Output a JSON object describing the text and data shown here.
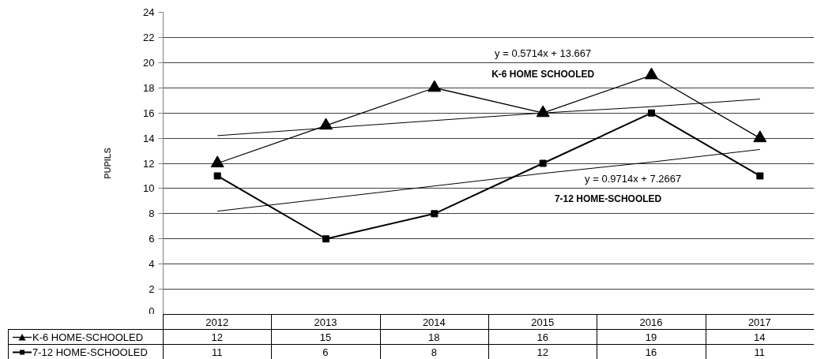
{
  "chart_data": {
    "type": "line",
    "categories": [
      "2012",
      "2013",
      "2014",
      "2015",
      "2016",
      "2017"
    ],
    "series": [
      {
        "name": "K-6 HOME-SCHOOLED",
        "color": "#000000",
        "marker": "triangle",
        "values": [
          12,
          15,
          18,
          16,
          19,
          14
        ],
        "value_labels": [
          "12",
          "15",
          "18",
          "16",
          "19",
          "14"
        ]
      },
      {
        "name": "7-12 HOME-SCHOOLED",
        "color": "#000000",
        "marker": "square",
        "values": [
          11,
          6,
          8,
          12,
          16,
          11
        ],
        "value_labels": [
          "11",
          "6",
          "8",
          "12",
          "16",
          "11"
        ]
      },
      {
        "type": "line",
        "color": "#000000",
        "marker": "none",
        "values": [
          14.2,
          14.8,
          15.4,
          16.0,
          16.5,
          17.1
        ]
      },
      {
        "type": "line",
        "color": "#000000",
        "marker": "none",
        "values": [
          8.2,
          9.2,
          10.2,
          11.2,
          12.1,
          13.1
        ]
      }
    ],
    "ylabel": "PUPILS",
    "ylim": [
      0,
      24
    ],
    "yticks": [
      0,
      2,
      4,
      6,
      8,
      10,
      12,
      14,
      16,
      18,
      20,
      22,
      24
    ],
    "grid": "y",
    "legend": "bottom left",
    "annotations": [
      "y = 0.5714x + 13.667",
      "K-6 HOME SCHOOLED",
      "y = 0.9714x + 7.2667",
      "7-12 HOME-SCHOOLED"
    ]
  }
}
